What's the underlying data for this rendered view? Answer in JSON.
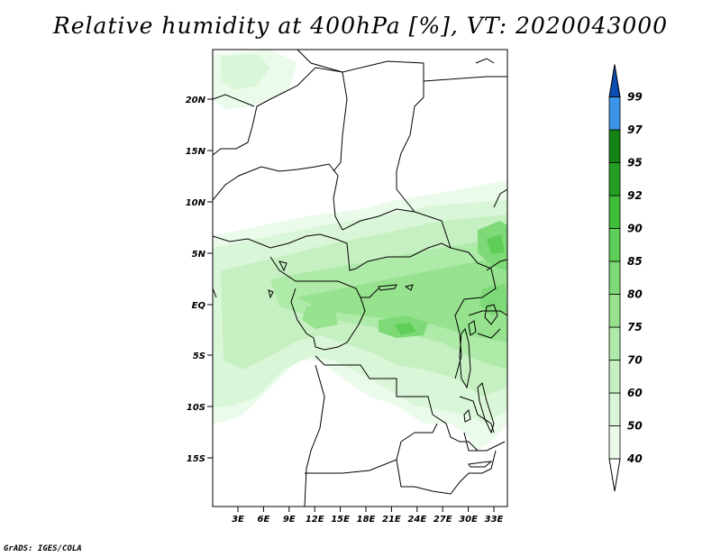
{
  "title": "Relative humidity at 400hPa [%], VT: 2020043000",
  "credit": "GrADS: IGES/COLA",
  "lat_labels": [
    "20N",
    "15N",
    "10N",
    "5N",
    "EQ",
    "5S",
    "10S",
    "15S"
  ],
  "lon_labels": [
    "3E",
    "6E",
    "9E",
    "12E",
    "15E",
    "18E",
    "21E",
    "24E",
    "27E",
    "30E",
    "33E"
  ],
  "colorbar": {
    "labels": [
      "40",
      "50",
      "60",
      "70",
      "75",
      "80",
      "85",
      "90",
      "92",
      "95",
      "97",
      "99"
    ],
    "colors": [
      "#ebfbeb",
      "#daf6d8",
      "#c6f0c2",
      "#aeeaa8",
      "#96e28e",
      "#7ed977",
      "#5fce58",
      "#3fbe3a",
      "#239f23",
      "#138413",
      "#3d93ea",
      "#1f6fd6",
      "#0b4cb0"
    ]
  },
  "colors": {
    "map_frame": "#000000",
    "border": "#000000"
  }
}
